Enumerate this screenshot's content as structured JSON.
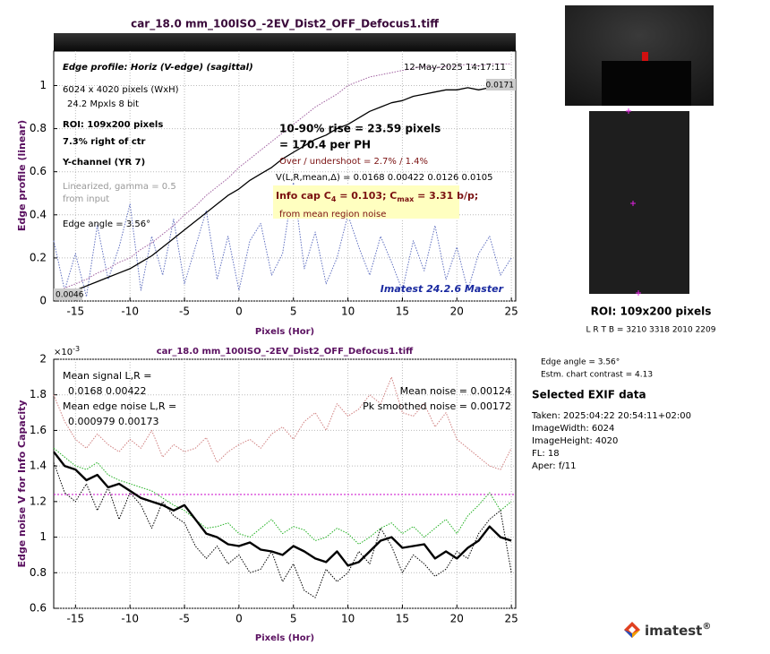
{
  "chart_data": [
    {
      "type": "line",
      "title": "car_18.0 mm_100ISO_-2EV_Dist2_OFF_Defocus1.tiff",
      "xlabel": "Pixels (Hor)",
      "ylabel": "Edge profile (linear)",
      "xlim": [
        -17,
        25.4
      ],
      "ylim": [
        0,
        1.16
      ],
      "xticks": [
        -15,
        -10,
        -5,
        0,
        5,
        10,
        15,
        20,
        25
      ],
      "yticks": [
        0,
        0.2,
        0.4,
        0.6,
        0.8,
        1
      ],
      "grid": true,
      "x": [
        -17,
        -16,
        -15,
        -14,
        -13,
        -12,
        -11,
        -10,
        -9,
        -8,
        -7,
        -6,
        -5,
        -4,
        -3,
        -2,
        -1,
        0,
        1,
        2,
        3,
        4,
        5,
        6,
        7,
        8,
        9,
        10,
        11,
        12,
        13,
        14,
        15,
        16,
        17,
        18,
        19,
        20,
        21,
        22,
        23,
        24,
        25
      ],
      "series": [
        {
          "color": "#6070c0",
          "dash": true,
          "width": 1,
          "values": [
            0.28,
            0.05,
            0.22,
            0.02,
            0.35,
            0.1,
            0.25,
            0.45,
            0.05,
            0.3,
            0.12,
            0.38,
            0.08,
            0.25,
            0.42,
            0.1,
            0.3,
            0.05,
            0.28,
            0.36,
            0.12,
            0.22,
            0.55,
            0.15,
            0.32,
            0.08,
            0.2,
            0.4,
            0.25,
            0.12,
            0.3,
            0.18,
            0.05,
            0.28,
            0.14,
            0.35,
            0.1,
            0.25,
            0.05,
            0.22,
            0.3,
            0.12,
            0.2
          ]
        },
        {
          "color": "#a060a0",
          "dash": true,
          "width": 1,
          "values": [
            0.04,
            0.06,
            0.08,
            0.1,
            0.13,
            0.15,
            0.18,
            0.2,
            0.24,
            0.27,
            0.31,
            0.35,
            0.4,
            0.44,
            0.49,
            0.53,
            0.57,
            0.62,
            0.66,
            0.7,
            0.74,
            0.78,
            0.82,
            0.86,
            0.9,
            0.93,
            0.96,
            1.0,
            1.02,
            1.04,
            1.05,
            1.06,
            1.07,
            1.08,
            1.09,
            1.08,
            1.09,
            1.09,
            1.1,
            1.09,
            1.1,
            1.1,
            1.1
          ]
        },
        {
          "color": "#000000",
          "dash": false,
          "width": 1.3,
          "values": [
            0.02,
            0.03,
            0.05,
            0.07,
            0.09,
            0.11,
            0.13,
            0.15,
            0.18,
            0.21,
            0.25,
            0.29,
            0.33,
            0.37,
            0.41,
            0.45,
            0.49,
            0.52,
            0.56,
            0.59,
            0.62,
            0.66,
            0.69,
            0.72,
            0.75,
            0.77,
            0.8,
            0.82,
            0.85,
            0.88,
            0.9,
            0.92,
            0.93,
            0.95,
            0.96,
            0.97,
            0.98,
            0.98,
            0.99,
            0.98,
            0.99,
            0.99,
            0.99
          ]
        }
      ],
      "annotations": [
        "Edge profile: Horiz (V-edge) (sagittal)",
        "12-May-2025 14:17:11",
        "6024 x 4020 pixels (WxH)",
        "24.2 Mpxls   8 bit",
        "ROI:  109x200 pixels",
        "7.3% right of ctr",
        "Y-channel  (YR 7)",
        "Linearized, gamma = 0.5",
        "from input",
        "Edge angle = 3.56°",
        "10-90% rise = 23.59 pixels",
        "= 170.4 per PH",
        "Over / undershoot =  2.7% /  1.4%",
        "V(L,R,mean,Δ) = 0.0168  0.00422  0.0126  0.0105",
        "from mean region noise",
        "Imatest 24.2.6 Master",
        "0.0171",
        "0.0046"
      ],
      "info_capacity": [
        "Info cap C",
        "4",
        " = 0.103;  C",
        "max",
        " = 3.31 b/p;"
      ]
    },
    {
      "type": "line",
      "title": "car_18.0 mm_100ISO_-2EV_Dist2_OFF_Defocus1.tiff",
      "xlabel": "Pixels (Hor)",
      "ylabel": "Edge noise V for Info Capacity",
      "y_multiplier": {
        "base": "×10",
        "exponent": "-3"
      },
      "xlim": [
        -17,
        25.4
      ],
      "ylim": [
        0.6,
        2
      ],
      "xticks": [
        -15,
        -10,
        -5,
        0,
        5,
        10,
        15,
        20,
        25
      ],
      "yticks": [
        0.6,
        0.8,
        1,
        1.2,
        1.4,
        1.6,
        1.8,
        2
      ],
      "grid": true,
      "x": [
        -17,
        -16,
        -15,
        -14,
        -13,
        -12,
        -11,
        -10,
        -9,
        -8,
        -7,
        -6,
        -5,
        -4,
        -3,
        -2,
        -1,
        0,
        1,
        2,
        3,
        4,
        5,
        6,
        7,
        8,
        9,
        10,
        11,
        12,
        13,
        14,
        15,
        16,
        17,
        18,
        19,
        20,
        21,
        22,
        23,
        24,
        25
      ],
      "reference_line": {
        "value": 1.24,
        "color": "#d020d0"
      },
      "series": [
        {
          "color": "#d08080",
          "dash": true,
          "width": 1,
          "values": [
            1.8,
            1.65,
            1.55,
            1.5,
            1.58,
            1.52,
            1.48,
            1.55,
            1.5,
            1.6,
            1.45,
            1.52,
            1.48,
            1.5,
            1.56,
            1.42,
            1.48,
            1.52,
            1.55,
            1.5,
            1.58,
            1.62,
            1.55,
            1.65,
            1.7,
            1.6,
            1.75,
            1.68,
            1.72,
            1.8,
            1.75,
            1.9,
            1.7,
            1.68,
            1.75,
            1.62,
            1.7,
            1.55,
            1.5,
            1.45,
            1.4,
            1.38,
            1.5
          ]
        },
        {
          "color": "#20b020",
          "dash": true,
          "width": 1,
          "values": [
            1.5,
            1.45,
            1.4,
            1.38,
            1.42,
            1.35,
            1.32,
            1.3,
            1.28,
            1.26,
            1.22,
            1.18,
            1.15,
            1.1,
            1.05,
            1.06,
            1.08,
            1.02,
            1.0,
            1.05,
            1.1,
            1.02,
            1.06,
            1.04,
            0.98,
            1.0,
            1.05,
            1.02,
            0.96,
            1.0,
            1.05,
            1.08,
            1.02,
            1.06,
            1.0,
            1.05,
            1.1,
            1.02,
            1.12,
            1.18,
            1.25,
            1.15,
            1.2
          ]
        },
        {
          "color": "#000000",
          "dash": true,
          "width": 1,
          "values": [
            1.42,
            1.25,
            1.2,
            1.3,
            1.15,
            1.28,
            1.1,
            1.25,
            1.18,
            1.05,
            1.2,
            1.12,
            1.08,
            0.95,
            0.88,
            0.95,
            0.85,
            0.9,
            0.8,
            0.82,
            0.92,
            0.75,
            0.85,
            0.7,
            0.66,
            0.82,
            0.75,
            0.8,
            0.92,
            0.85,
            1.05,
            0.95,
            0.8,
            0.9,
            0.85,
            0.78,
            0.82,
            0.92,
            0.88,
            1.02,
            1.1,
            1.15,
            0.8
          ]
        },
        {
          "color": "#000000",
          "dash": false,
          "width": 2.4,
          "values": [
            1.48,
            1.4,
            1.38,
            1.32,
            1.35,
            1.28,
            1.3,
            1.26,
            1.22,
            1.2,
            1.18,
            1.15,
            1.18,
            1.1,
            1.02,
            1.0,
            0.96,
            0.95,
            0.97,
            0.93,
            0.92,
            0.9,
            0.95,
            0.92,
            0.88,
            0.86,
            0.92,
            0.84,
            0.86,
            0.92,
            0.98,
            1.0,
            0.94,
            0.95,
            0.96,
            0.88,
            0.92,
            0.88,
            0.94,
            0.98,
            1.06,
            1.0,
            0.98
          ]
        }
      ],
      "annotations": [
        "Mean signal L,R =",
        "0.0168  0.00422",
        "Mean edge noise L,R =",
        "0.000979  0.00173",
        "Mean noise = 0.00124",
        "Pk smoothed noise = 0.00172"
      ]
    }
  ],
  "side_panel": {
    "roi": "ROI:  109x200 pixels",
    "coords": "L R  T B = 3210 3318  2010 2209",
    "edge_angle": "Edge angle = 3.56°",
    "contrast": "Estm. chart contrast = 4.13",
    "exif_title": "Selected EXIF data",
    "exif": [
      "Taken: 2025:04:22 20:54:11+02:00",
      "ImageWidth:  6024",
      "ImageHeight:  4020",
      "FL:   18",
      "Aper:  f/11"
    ],
    "logo": "imatest",
    "logo_mark": "®"
  }
}
